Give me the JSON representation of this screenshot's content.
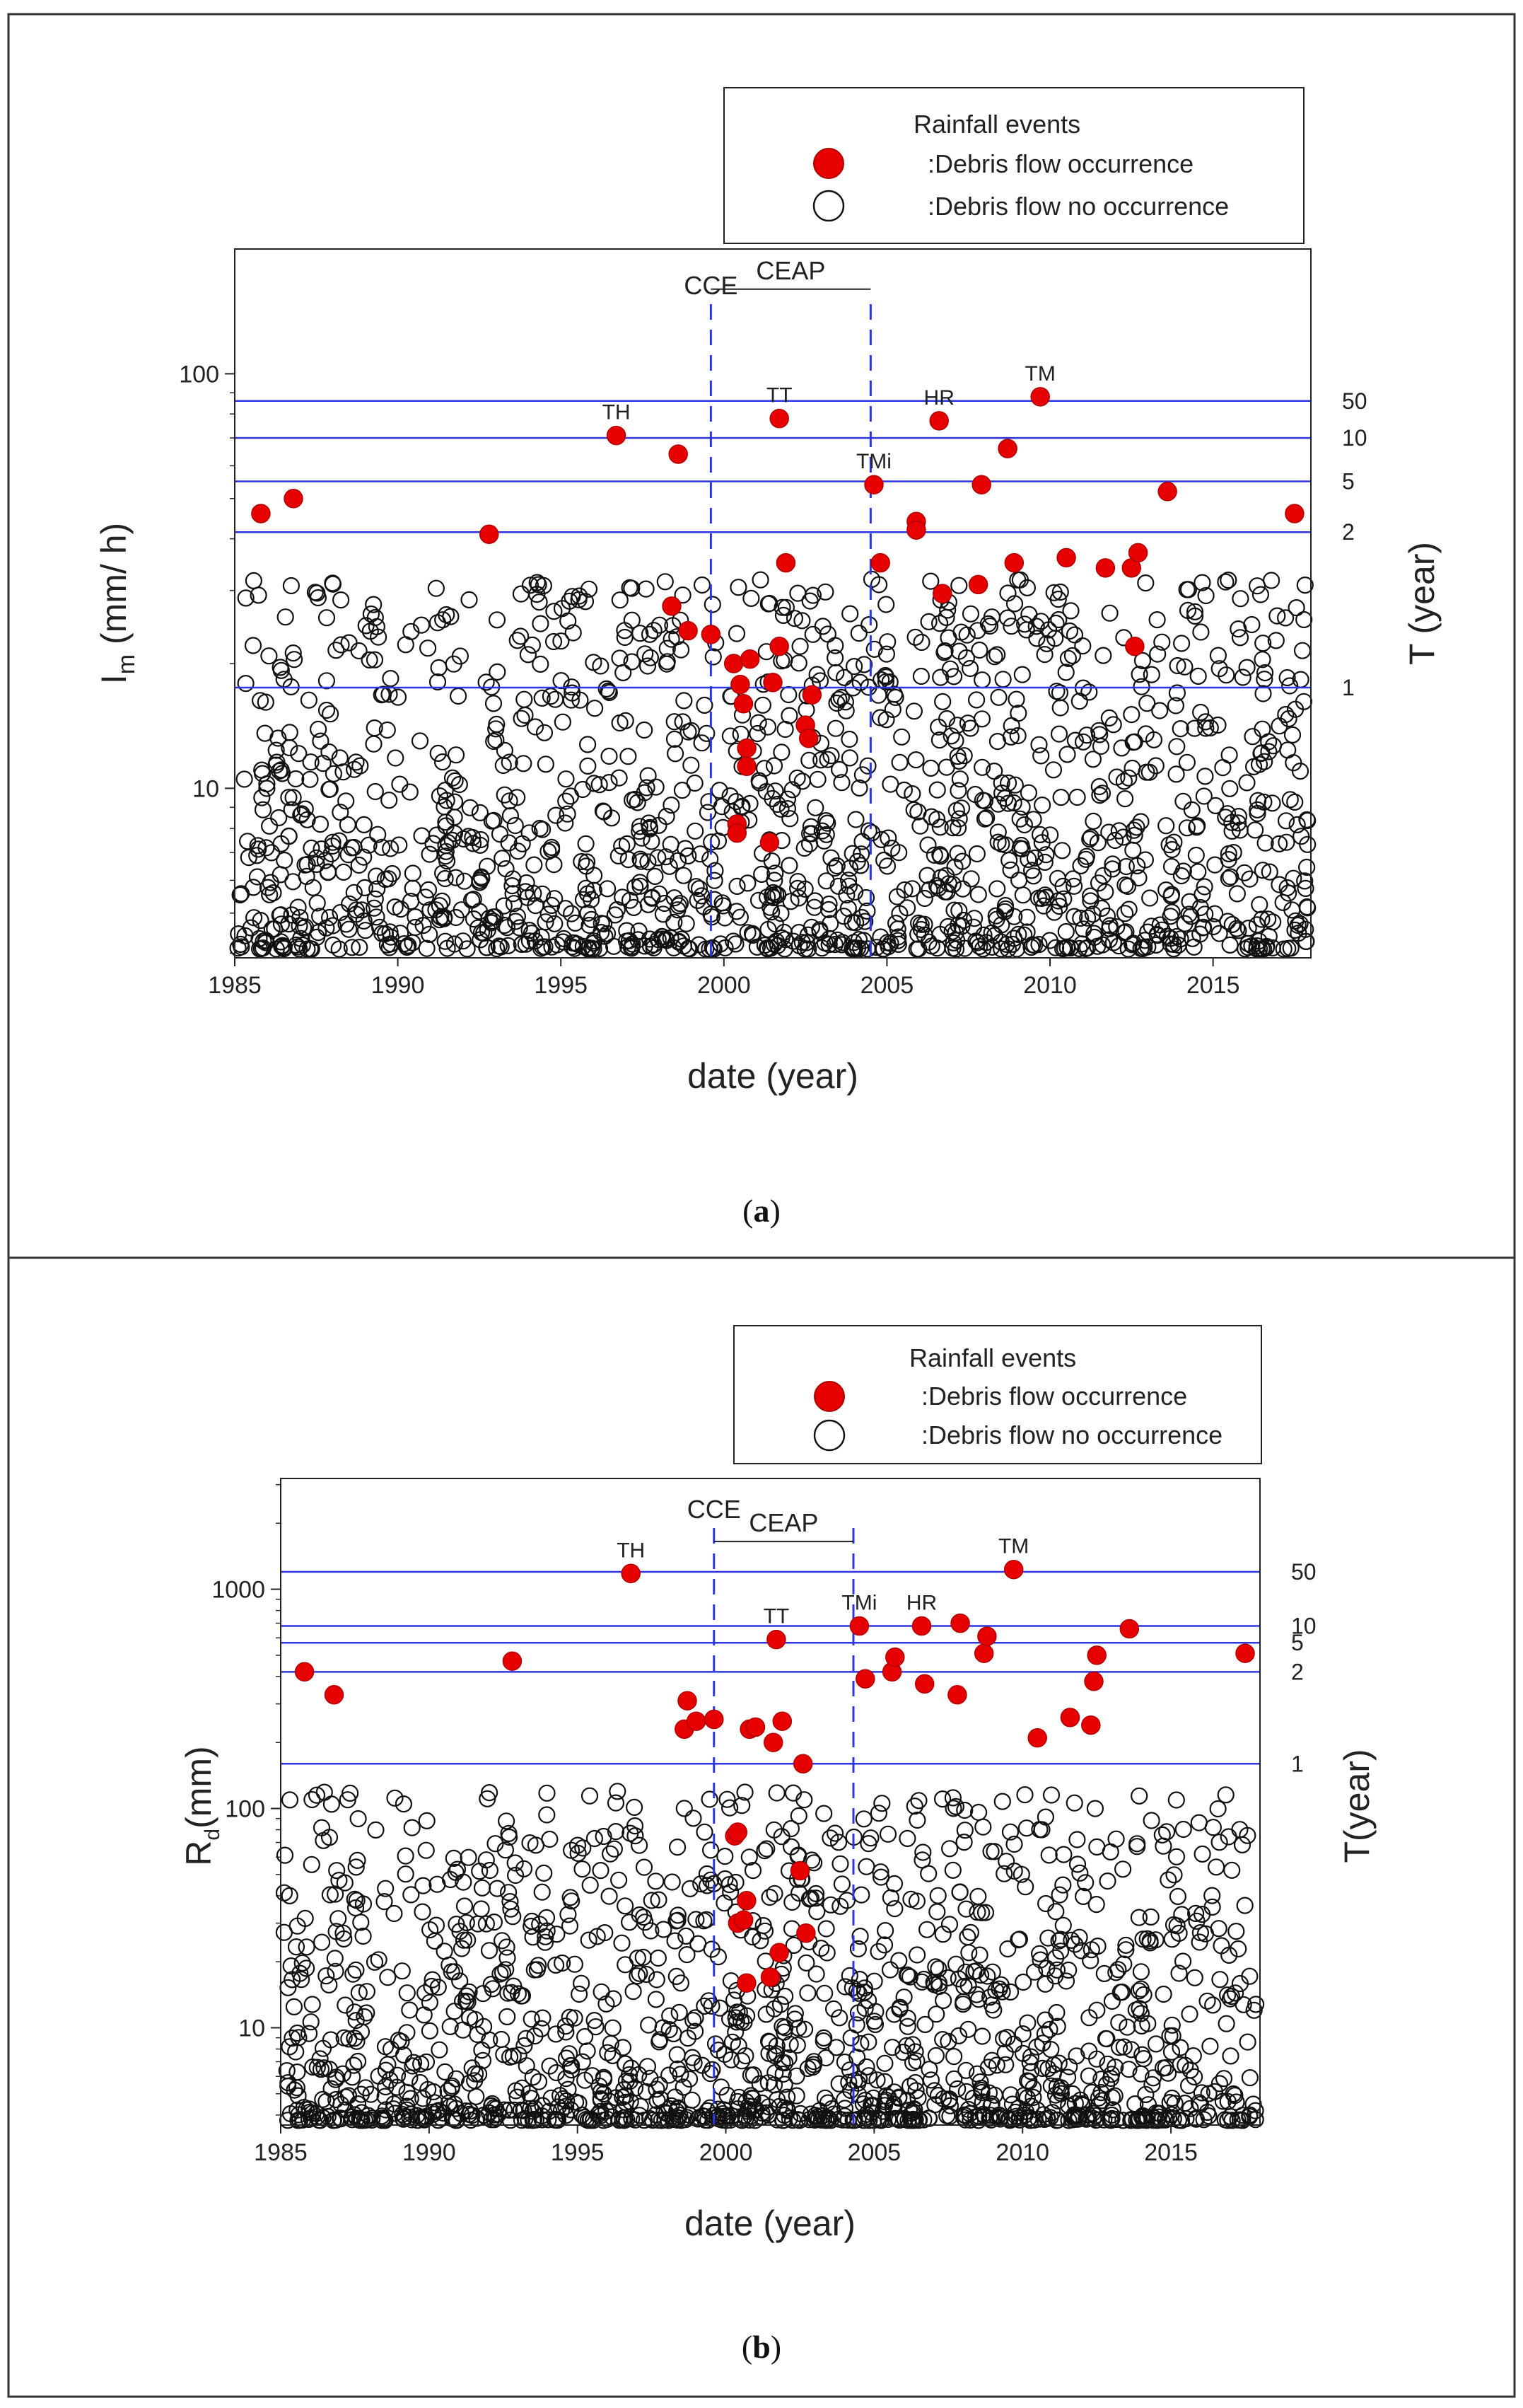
{
  "chart_data": [
    {
      "type": "scatter",
      "panel": "a",
      "caption_label": "a",
      "yscale": "log",
      "ylabel_main": "I",
      "ylabel_sub": "m",
      "ylabel_rest": "(mm/ h)",
      "y2label": "T (year)",
      "xlabel": "date (year)",
      "xlim": [
        1985,
        2018
      ],
      "ylim": [
        3.9,
        200
      ],
      "xticks": [
        1985,
        1990,
        1995,
        2000,
        2005,
        2010,
        2015
      ],
      "yticks": [
        {
          "value": 10,
          "label": "10"
        },
        {
          "value": 100,
          "label": "100"
        }
      ],
      "legend": {
        "title": "Rainfall events",
        "occurrence": ":Debris flow occurrence",
        "no_occurrence": ":Debris flow no occurrence"
      },
      "return_periods": [
        {
          "label": "50",
          "value": 86
        },
        {
          "label": "10",
          "value": 70
        },
        {
          "label": "5",
          "value": 55
        },
        {
          "label": "2",
          "value": 41.5
        },
        {
          "label": "1",
          "value": 17.5
        }
      ],
      "vlines": [
        {
          "label": "CCE",
          "x": 1999.6
        },
        {
          "label": "",
          "x": 2004.5
        }
      ],
      "period": {
        "label": "CEAP",
        "x1": 1999.6,
        "x2": 2004.5,
        "y": 160
      },
      "events": [
        {
          "label": "TH",
          "x": 1996.7,
          "y": 71
        },
        {
          "label": "TT",
          "x": 2001.7,
          "y": 78
        },
        {
          "label": "TMi",
          "x": 2004.6,
          "y": 54
        },
        {
          "label": "HR",
          "x": 2006.6,
          "y": 77
        },
        {
          "label": "TM",
          "x": 2009.7,
          "y": 88
        }
      ],
      "occurrence": [
        [
          1985.8,
          46
        ],
        [
          1986.8,
          50
        ],
        [
          1992.8,
          41
        ],
        [
          1996.7,
          71
        ],
        [
          1998.4,
          27.5
        ],
        [
          1998.6,
          64
        ],
        [
          1998.9,
          24
        ],
        [
          1999.6,
          23.5
        ],
        [
          2000.3,
          20
        ],
        [
          2000.4,
          8.2
        ],
        [
          2000.4,
          7.8
        ],
        [
          2000.5,
          17.8
        ],
        [
          2000.6,
          16
        ],
        [
          2000.7,
          12.5
        ],
        [
          2000.7,
          11.3
        ],
        [
          2000.8,
          20.5
        ],
        [
          2001.4,
          7.4
        ],
        [
          2001.5,
          18
        ],
        [
          2001.7,
          78
        ],
        [
          2001.7,
          22
        ],
        [
          2001.9,
          35
        ],
        [
          2002.5,
          14.2
        ],
        [
          2002.6,
          13.2
        ],
        [
          2002.7,
          16.8
        ],
        [
          2004.6,
          54
        ],
        [
          2004.8,
          35
        ],
        [
          2005.9,
          44
        ],
        [
          2005.9,
          42
        ],
        [
          2006.6,
          77
        ],
        [
          2006.7,
          29.5
        ],
        [
          2007.8,
          31
        ],
        [
          2007.9,
          54
        ],
        [
          2008.7,
          66
        ],
        [
          2008.9,
          35
        ],
        [
          2010.5,
          36
        ],
        [
          2011.7,
          34
        ],
        [
          2012.5,
          34
        ],
        [
          2012.6,
          22
        ],
        [
          2012.7,
          37
        ],
        [
          2013.6,
          52
        ],
        [
          2009.7,
          88
        ],
        [
          2017.5,
          46
        ]
      ]
    },
    {
      "type": "scatter",
      "panel": "b",
      "caption_label": "b",
      "yscale": "log",
      "ylabel_main": "R",
      "ylabel_sub": "d",
      "ylabel_rest": "(mm)",
      "y2label": "T(year)",
      "xlabel": "date (year)",
      "xlim": [
        1985,
        2018
      ],
      "ylim": [
        3.6,
        3200
      ],
      "xticks": [
        1985,
        1990,
        1995,
        2000,
        2005,
        2010,
        2015
      ],
      "yticks": [
        {
          "value": 10,
          "label": "10"
        },
        {
          "value": 100,
          "label": "100"
        },
        {
          "value": 1000,
          "label": "1000"
        }
      ],
      "legend": {
        "title": "Rainfall events",
        "occurrence": ":Debris flow occurrence",
        "no_occurrence": ":Debris flow no occurrence"
      },
      "return_periods": [
        {
          "label": "50",
          "value": 1200
        },
        {
          "label": "10",
          "value": 680
        },
        {
          "label": "5",
          "value": 570
        },
        {
          "label": "2",
          "value": 420
        },
        {
          "label": "1",
          "value": 160
        }
      ],
      "vlines": [
        {
          "label": "CCE",
          "x": 1999.6
        },
        {
          "label": "",
          "x": 2004.3
        }
      ],
      "period": {
        "label": "CEAP",
        "x1": 1999.6,
        "x2": 2004.3,
        "y": 1650
      },
      "events": [
        {
          "label": "TH",
          "x": 1996.8,
          "y": 1180
        },
        {
          "label": "TT",
          "x": 2001.7,
          "y": 590
        },
        {
          "label": "TMi",
          "x": 2004.5,
          "y": 680
        },
        {
          "label": "HR",
          "x": 2006.6,
          "y": 680
        },
        {
          "label": "TM",
          "x": 2009.7,
          "y": 1230
        }
      ],
      "occurrence": [
        [
          1985.8,
          420
        ],
        [
          1986.8,
          330
        ],
        [
          1992.8,
          470
        ],
        [
          1996.8,
          1180
        ],
        [
          1998.6,
          230
        ],
        [
          1998.7,
          310
        ],
        [
          1999.0,
          250
        ],
        [
          1999.6,
          255
        ],
        [
          2000.3,
          75
        ],
        [
          2000.4,
          78
        ],
        [
          2000.4,
          30
        ],
        [
          2000.6,
          31
        ],
        [
          2000.7,
          38
        ],
        [
          2000.7,
          16
        ],
        [
          2000.8,
          230
        ],
        [
          2001.0,
          235
        ],
        [
          2001.5,
          17
        ],
        [
          2001.6,
          200
        ],
        [
          2001.7,
          590
        ],
        [
          2001.8,
          22
        ],
        [
          2001.9,
          250
        ],
        [
          2002.5,
          52
        ],
        [
          2002.6,
          160
        ],
        [
          2002.7,
          27
        ],
        [
          2004.5,
          680
        ],
        [
          2004.7,
          390
        ],
        [
          2005.6,
          420
        ],
        [
          2005.7,
          490
        ],
        [
          2006.6,
          680
        ],
        [
          2006.7,
          370
        ],
        [
          2007.8,
          330
        ],
        [
          2007.9,
          700
        ],
        [
          2008.7,
          510
        ],
        [
          2008.8,
          610
        ],
        [
          2009.7,
          1230
        ],
        [
          2010.5,
          210
        ],
        [
          2011.6,
          260
        ],
        [
          2012.3,
          240
        ],
        [
          2012.4,
          380
        ],
        [
          2012.5,
          500
        ],
        [
          2013.6,
          660
        ],
        [
          2017.5,
          510
        ]
      ]
    }
  ]
}
